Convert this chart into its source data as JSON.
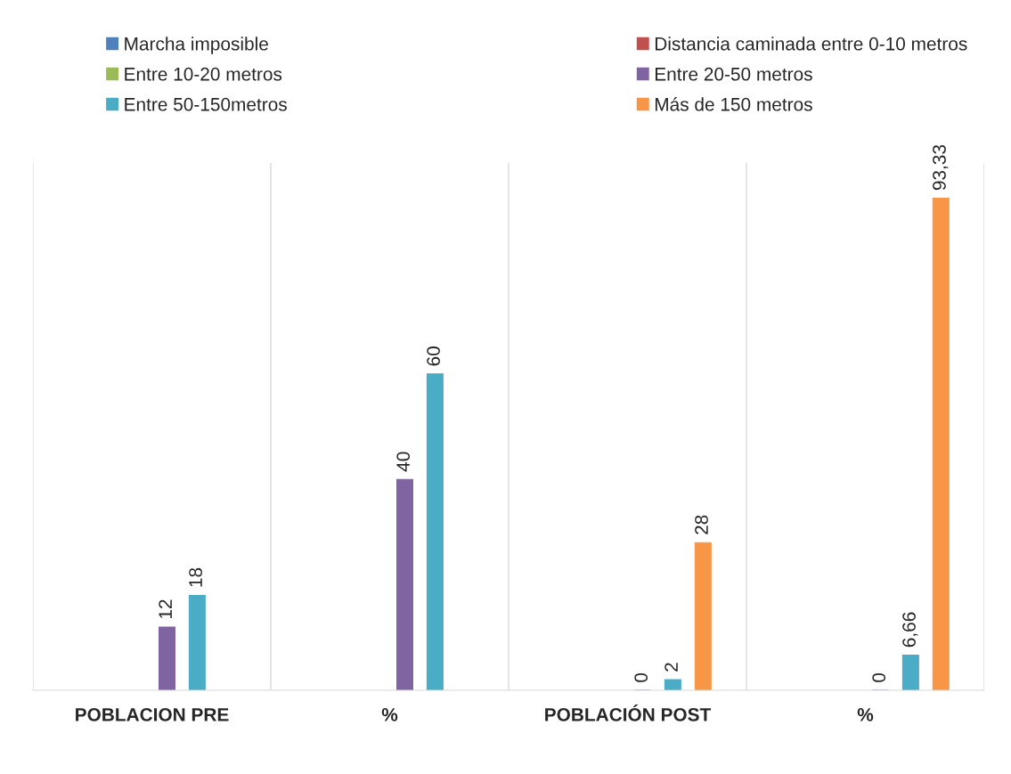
{
  "chart_data": {
    "type": "bar",
    "categories": [
      "POBLACION PRE",
      "%",
      "POBLACIÓN POST",
      "%"
    ],
    "series": [
      {
        "name": "Marcha imposible",
        "color": "#4f81bd",
        "values": [
          null,
          null,
          null,
          null
        ]
      },
      {
        "name": "Distancia caminada entre 0-10 metros",
        "color": "#c0504d",
        "values": [
          null,
          null,
          null,
          null
        ]
      },
      {
        "name": "Entre 10-20 metros",
        "color": "#9bbb59",
        "values": [
          null,
          null,
          null,
          null
        ]
      },
      {
        "name": "Entre 20-50 metros",
        "color": "#8064a2",
        "values": [
          12,
          40,
          0,
          0
        ],
        "value_labels": [
          "12",
          "40",
          "0",
          "0"
        ]
      },
      {
        "name": "Entre 50-150metros",
        "color": "#4bacc6",
        "values": [
          18,
          60,
          2,
          6.66
        ],
        "value_labels": [
          "18",
          "60",
          "2",
          "6,66"
        ]
      },
      {
        "name": "Más de 150 metros",
        "color": "#f79646",
        "values": [
          null,
          null,
          28,
          93.33
        ],
        "value_labels": [
          null,
          null,
          "28",
          "93,33"
        ]
      }
    ],
    "ylim": [
      0,
      100
    ],
    "grid": "x",
    "legend": "top",
    "tick_labels": "x"
  }
}
